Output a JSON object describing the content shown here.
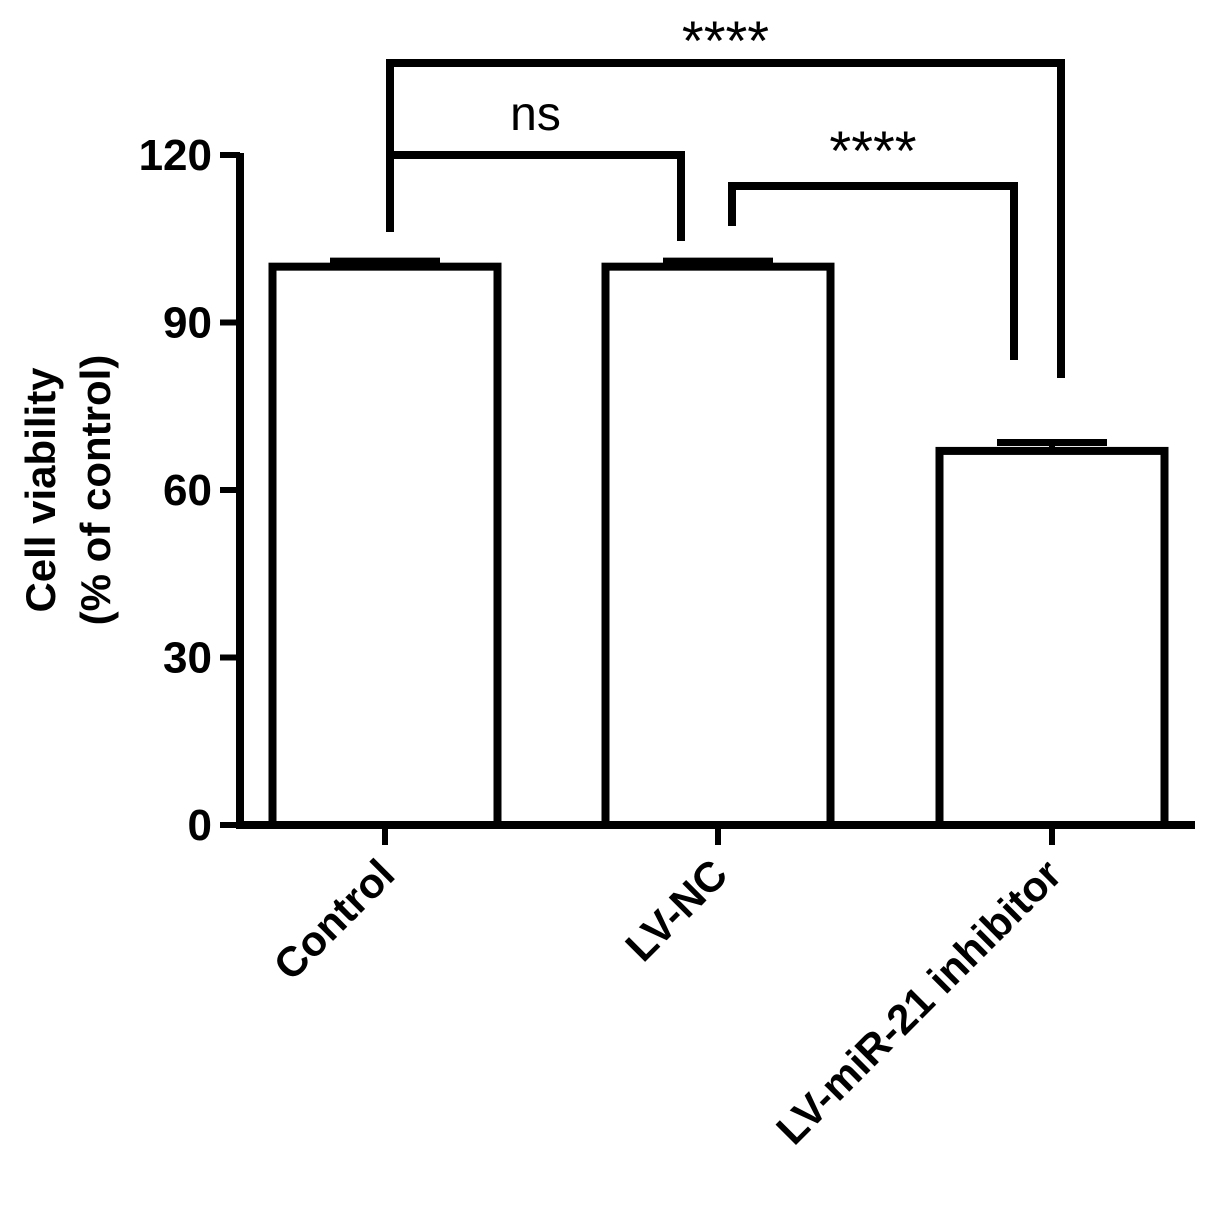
{
  "chart_data": {
    "type": "bar",
    "categories": [
      "Control",
      "LV-NC",
      "LV-miR-21 inhibitor"
    ],
    "values": [
      100,
      100,
      67
    ],
    "error": [
      1,
      1,
      1.5
    ],
    "ylabel_line1": "Cell viability",
    "ylabel_line2": "(% of control)",
    "ylim": [
      0,
      120
    ],
    "yticks": [
      0,
      30,
      60,
      90,
      120
    ],
    "ytick_labels": [
      "0",
      "30",
      "60",
      "90",
      "120"
    ],
    "grid": false,
    "significance": [
      {
        "from": 0,
        "to": 2,
        "label": "****"
      },
      {
        "from": 0,
        "to": 1,
        "label": "ns"
      },
      {
        "from": 1,
        "to": 2,
        "label": "****"
      }
    ]
  },
  "colors": {
    "bar_fill": "#ffffff",
    "stroke": "#000000"
  }
}
